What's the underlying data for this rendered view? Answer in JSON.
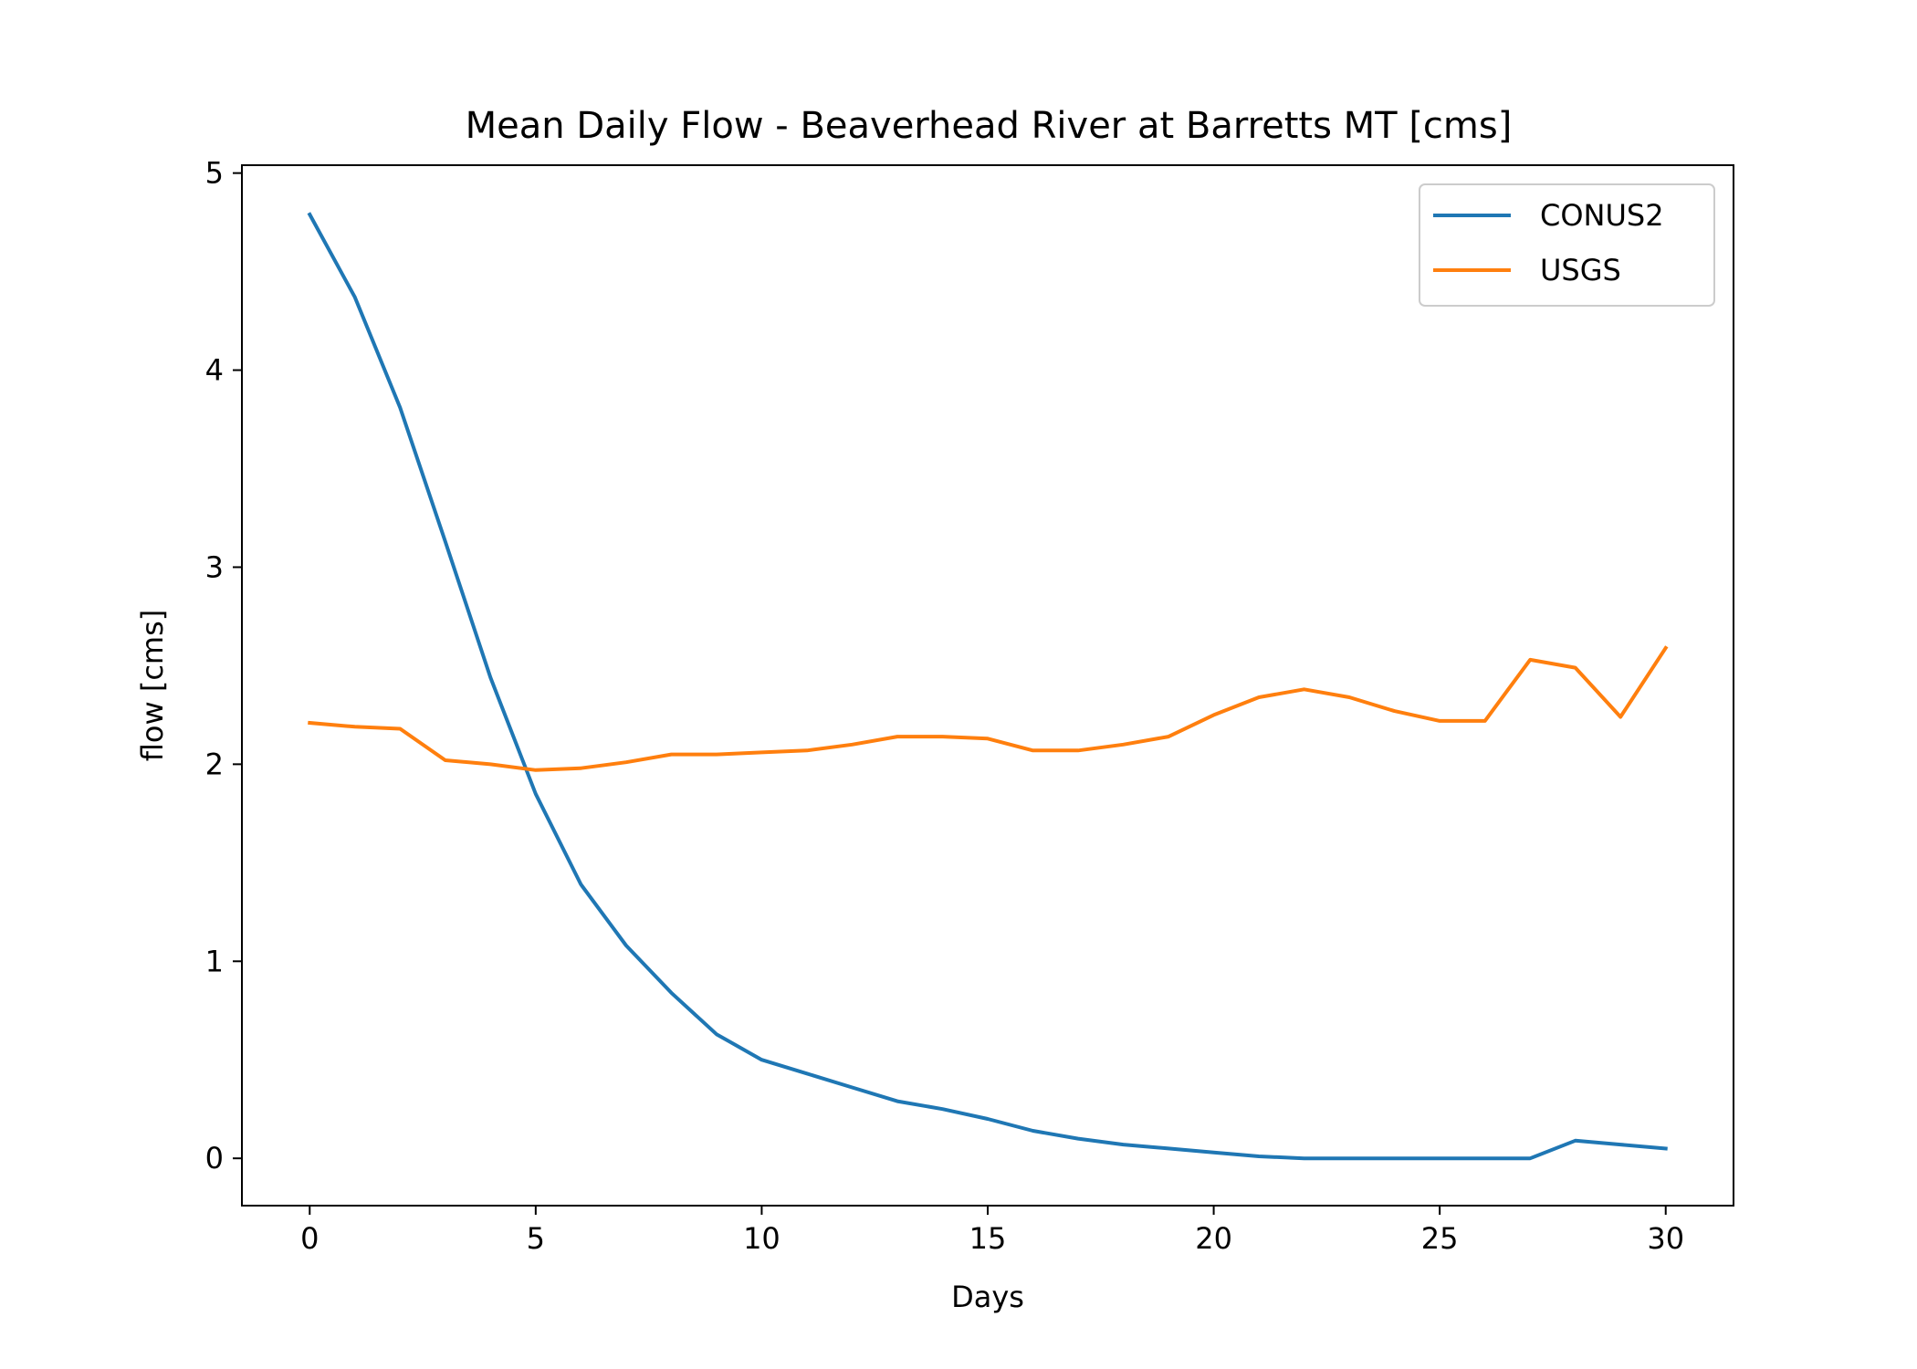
{
  "chart_data": {
    "type": "line",
    "title": "Mean Daily Flow - Beaverhead River at Barretts MT [cms]",
    "xlabel": "Days",
    "ylabel": "flow [cms]",
    "xlim": [
      -1.5,
      31.5
    ],
    "ylim": [
      -0.24,
      5.04
    ],
    "xticks": [
      0,
      5,
      10,
      15,
      20,
      25,
      30
    ],
    "yticks": [
      0,
      1,
      2,
      3,
      4,
      5
    ],
    "grid": false,
    "legend_position": "upper right",
    "x": [
      0,
      1,
      2,
      3,
      4,
      5,
      6,
      7,
      8,
      9,
      10,
      11,
      12,
      13,
      14,
      15,
      16,
      17,
      18,
      19,
      20,
      21,
      22,
      23,
      24,
      25,
      26,
      27,
      28,
      29,
      30
    ],
    "series": [
      {
        "name": "CONUS2",
        "color": "#1f77b4",
        "values": [
          4.79,
          4.37,
          3.81,
          3.13,
          2.44,
          1.85,
          1.39,
          1.08,
          0.84,
          0.63,
          0.5,
          0.43,
          0.36,
          0.29,
          0.25,
          0.2,
          0.14,
          0.1,
          0.07,
          0.05,
          0.03,
          0.01,
          0.0,
          0.0,
          0.0,
          0.0,
          0.0,
          0.0,
          0.09,
          0.07,
          0.05
        ]
      },
      {
        "name": "USGS",
        "color": "#ff7f0e",
        "values": [
          2.21,
          2.19,
          2.18,
          2.02,
          2.0,
          1.97,
          1.98,
          2.01,
          2.05,
          2.05,
          2.06,
          2.07,
          2.1,
          2.14,
          2.14,
          2.13,
          2.07,
          2.07,
          2.1,
          2.14,
          2.25,
          2.34,
          2.38,
          2.34,
          2.27,
          2.22,
          2.22,
          2.53,
          2.49,
          2.24,
          2.59
        ]
      }
    ]
  }
}
